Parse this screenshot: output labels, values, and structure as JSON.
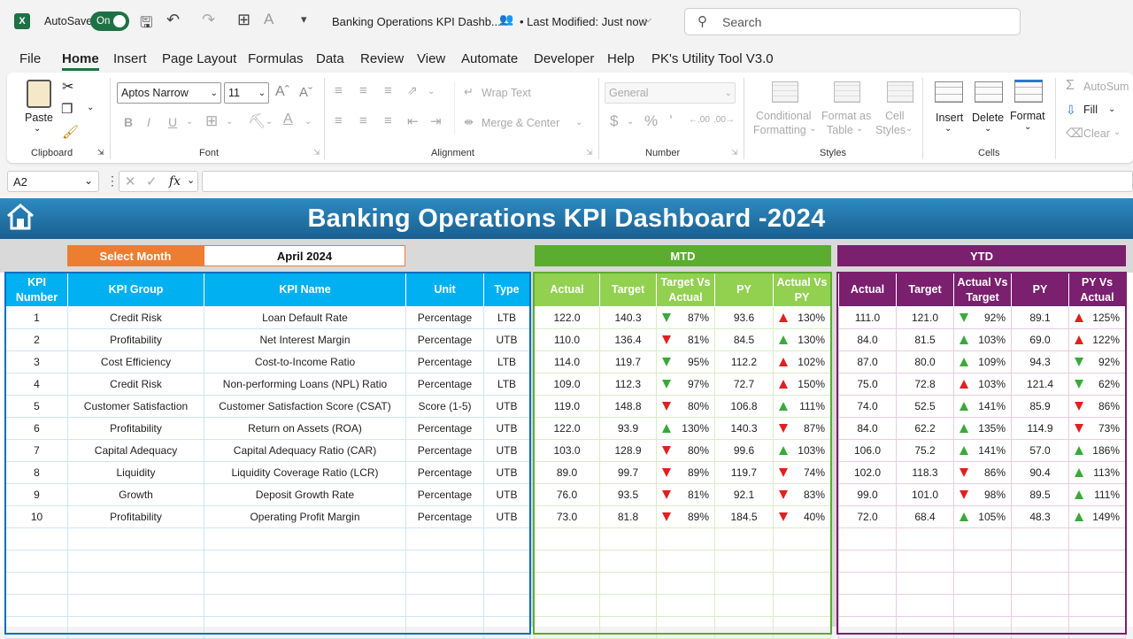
{
  "app": {
    "autosave_label": "AutoSave",
    "toggle_label": "On",
    "doc_title": "Banking Operations KPI Dashb...",
    "modified": "• Last Modified: Just now",
    "search_placeholder": "Search"
  },
  "menu": [
    "File",
    "Home",
    "Insert",
    "Page Layout",
    "Formulas",
    "Data",
    "Review",
    "View",
    "Automate",
    "Developer",
    "Help",
    "PK's Utility Tool V3.0"
  ],
  "ribbon": {
    "paste": "Paste",
    "clipboard": "Clipboard",
    "font_name": "Aptos Narrow",
    "font_size": "11",
    "font": "Font",
    "wrap_text": "Wrap Text",
    "merge_center": "Merge & Center",
    "alignment": "Alignment",
    "number_format": "General",
    "number": "Number",
    "cond_fmt1": "Conditional",
    "cond_fmt2": "Formatting",
    "fmt_table1": "Format as",
    "fmt_table2": "Table",
    "cell_styles1": "Cell",
    "cell_styles2": "Styles",
    "styles": "Styles",
    "insert": "Insert",
    "delete": "Delete",
    "format": "Format",
    "cells": "Cells",
    "autosum": "AutoSum",
    "fill": "Fill",
    "clear": "Clear"
  },
  "formula_bar": {
    "name_box": "A2",
    "fx": "fx",
    "value": ""
  },
  "dashboard": {
    "title": "Banking Operations KPI Dashboard -2024",
    "select_month_label": "Select Month",
    "month_value": "April 2024",
    "mtd_label": "MTD",
    "ytd_label": "YTD"
  },
  "colors": {
    "kpi_header": "#00b0f0",
    "mtd": "#5aad2e",
    "mtd_header": "#92d050",
    "ytd": "#7b1f6f",
    "select_month": "#ed7d31",
    "banner": "#1f6ea3",
    "up": "#3aa93a",
    "down_bad": "#e02020"
  },
  "kpi_headers": [
    "KPI Number",
    "KPI Group",
    "KPI Name",
    "Unit",
    "Type"
  ],
  "mtd_headers": [
    "Actual",
    "Target",
    "Target Vs Actual",
    "PY",
    "Actual Vs PY"
  ],
  "ytd_headers": [
    "Actual",
    "Target",
    "Actual Vs Target",
    "PY",
    "PY Vs Actual"
  ],
  "rows": [
    {
      "n": "1",
      "group": "Credit Risk",
      "name": "Loan Default Rate",
      "unit": "Percentage",
      "type": "LTB",
      "m_act": "122.0",
      "m_tgt": "140.3",
      "m_tva": "87%",
      "m_tva_icon": "down-green",
      "m_py": "93.6",
      "m_avp": "130%",
      "m_avp_icon": "up-red",
      "y_act": "111.0",
      "y_tgt": "121.0",
      "y_avt": "92%",
      "y_avt_icon": "down-green",
      "y_py": "89.1",
      "y_pva": "125%",
      "y_pva_icon": "up-red"
    },
    {
      "n": "2",
      "group": "Profitability",
      "name": "Net Interest Margin",
      "unit": "Percentage",
      "type": "UTB",
      "m_act": "110.0",
      "m_tgt": "136.4",
      "m_tva": "81%",
      "m_tva_icon": "down-red",
      "m_py": "84.5",
      "m_avp": "130%",
      "m_avp_icon": "up-green",
      "y_act": "84.0",
      "y_tgt": "81.5",
      "y_avt": "103%",
      "y_avt_icon": "up-green",
      "y_py": "69.0",
      "y_pva": "122%",
      "y_pva_icon": "up-red"
    },
    {
      "n": "3",
      "group": "Cost Efficiency",
      "name": "Cost-to-Income Ratio",
      "unit": "Percentage",
      "type": "LTB",
      "m_act": "114.0",
      "m_tgt": "119.7",
      "m_tva": "95%",
      "m_tva_icon": "down-green",
      "m_py": "112.2",
      "m_avp": "102%",
      "m_avp_icon": "up-red",
      "y_act": "87.0",
      "y_tgt": "80.0",
      "y_avt": "109%",
      "y_avt_icon": "up-green",
      "y_py": "94.3",
      "y_pva": "92%",
      "y_pva_icon": "down-green"
    },
    {
      "n": "4",
      "group": "Credit Risk",
      "name": "Non-performing Loans (NPL) Ratio",
      "unit": "Percentage",
      "type": "LTB",
      "m_act": "109.0",
      "m_tgt": "112.3",
      "m_tva": "97%",
      "m_tva_icon": "down-green",
      "m_py": "72.7",
      "m_avp": "150%",
      "m_avp_icon": "up-red",
      "y_act": "75.0",
      "y_tgt": "72.8",
      "y_avt": "103%",
      "y_avt_icon": "up-red",
      "y_py": "121.4",
      "y_pva": "62%",
      "y_pva_icon": "down-green"
    },
    {
      "n": "5",
      "group": "Customer Satisfaction",
      "name": "Customer Satisfaction Score (CSAT)",
      "unit": "Score (1-5)",
      "type": "UTB",
      "m_act": "119.0",
      "m_tgt": "148.8",
      "m_tva": "80%",
      "m_tva_icon": "down-red",
      "m_py": "106.8",
      "m_avp": "111%",
      "m_avp_icon": "up-green",
      "y_act": "74.0",
      "y_tgt": "52.5",
      "y_avt": "141%",
      "y_avt_icon": "up-green",
      "y_py": "85.9",
      "y_pva": "86%",
      "y_pva_icon": "down-red"
    },
    {
      "n": "6",
      "group": "Profitability",
      "name": "Return on Assets (ROA)",
      "unit": "Percentage",
      "type": "UTB",
      "m_act": "122.0",
      "m_tgt": "93.9",
      "m_tva": "130%",
      "m_tva_icon": "up-green",
      "m_py": "140.3",
      "m_avp": "87%",
      "m_avp_icon": "down-red",
      "y_act": "84.0",
      "y_tgt": "62.2",
      "y_avt": "135%",
      "y_avt_icon": "up-green",
      "y_py": "114.9",
      "y_pva": "73%",
      "y_pva_icon": "down-red"
    },
    {
      "n": "7",
      "group": "Capital Adequacy",
      "name": "Capital Adequacy Ratio (CAR)",
      "unit": "Percentage",
      "type": "UTB",
      "m_act": "103.0",
      "m_tgt": "128.9",
      "m_tva": "80%",
      "m_tva_icon": "down-red",
      "m_py": "99.6",
      "m_avp": "103%",
      "m_avp_icon": "up-green",
      "y_act": "106.0",
      "y_tgt": "75.2",
      "y_avt": "141%",
      "y_avt_icon": "up-green",
      "y_py": "57.0",
      "y_pva": "186%",
      "y_pva_icon": "up-green"
    },
    {
      "n": "8",
      "group": "Liquidity",
      "name": "Liquidity Coverage Ratio (LCR)",
      "unit": "Percentage",
      "type": "UTB",
      "m_act": "89.0",
      "m_tgt": "99.7",
      "m_tva": "89%",
      "m_tva_icon": "down-red",
      "m_py": "119.7",
      "m_avp": "74%",
      "m_avp_icon": "down-red",
      "y_act": "102.0",
      "y_tgt": "118.3",
      "y_avt": "86%",
      "y_avt_icon": "down-red",
      "y_py": "90.4",
      "y_pva": "113%",
      "y_pva_icon": "up-green"
    },
    {
      "n": "9",
      "group": "Growth",
      "name": "Deposit Growth Rate",
      "unit": "Percentage",
      "type": "UTB",
      "m_act": "76.0",
      "m_tgt": "93.5",
      "m_tva": "81%",
      "m_tva_icon": "down-red",
      "m_py": "92.1",
      "m_avp": "83%",
      "m_avp_icon": "down-red",
      "y_act": "99.0",
      "y_tgt": "101.0",
      "y_avt": "98%",
      "y_avt_icon": "down-red",
      "y_py": "89.5",
      "y_pva": "111%",
      "y_pva_icon": "up-green"
    },
    {
      "n": "10",
      "group": "Profitability",
      "name": "Operating Profit Margin",
      "unit": "Percentage",
      "type": "UTB",
      "m_act": "73.0",
      "m_tgt": "81.8",
      "m_tva": "89%",
      "m_tva_icon": "down-red",
      "m_py": "184.5",
      "m_avp": "40%",
      "m_avp_icon": "down-red",
      "y_act": "72.0",
      "y_tgt": "68.4",
      "y_avt": "105%",
      "y_avt_icon": "up-green",
      "y_py": "48.3",
      "y_pva": "149%",
      "y_pva_icon": "up-green"
    }
  ]
}
